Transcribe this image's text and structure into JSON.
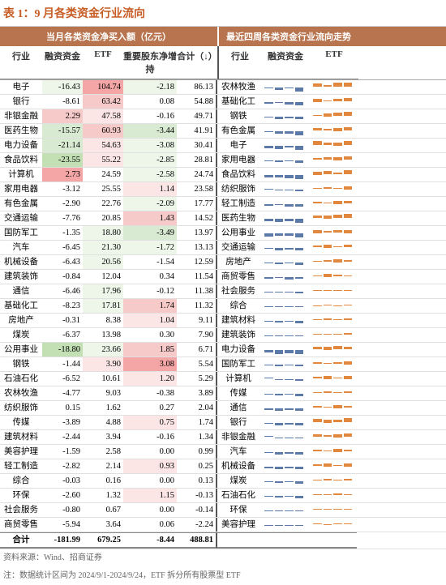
{
  "title": "表 1：9 月各类资金行业流向",
  "colors": {
    "header_bg": "#b8744e",
    "accent": "#c75c24",
    "grid": "#e0e0e0",
    "green1": "#c3e0b4",
    "green2": "#d9ead3",
    "green3": "#eef6ea",
    "red1": "#f4a6a6",
    "red2": "#f7caca",
    "red3": "#fbe5e5",
    "spark_blue": "#5b7aa8",
    "spark_orange": "#e2873e"
  },
  "sections": {
    "left": "当月各类资金净买入额（亿元）",
    "right": "最近四周各类资金行业流向走势"
  },
  "columns": {
    "industry": "行业",
    "margin": "融资资金",
    "etf": "ETF",
    "insider": "重要股东净增持",
    "total": "合计（↓）",
    "industry2": "行业",
    "margin2": "融资资金",
    "etf2": "ETF"
  },
  "rows": [
    {
      "ind": "电子",
      "mg": -16.43,
      "mgC": "green3",
      "etf": 104.74,
      "etfC": "red1",
      "ins": -2.18,
      "insC": "green3",
      "tot": 86.13,
      "ind2": "农林牧渔",
      "sp1": [
        -0.2,
        -0.6,
        -0.3,
        -0.8
      ],
      "sp2": [
        0.7,
        0.4,
        0.8,
        0.9
      ]
    },
    {
      "ind": "银行",
      "mg": -8.61,
      "etf": 63.42,
      "etfC": "red2",
      "ins": 0.08,
      "insC": "",
      "tot": 54.88,
      "ind2": "基础化工",
      "sp1": [
        -0.4,
        -0.3,
        -0.5,
        -0.7
      ],
      "sp2": [
        0.5,
        0.3,
        0.6,
        0.7
      ]
    },
    {
      "ind": "非银金融",
      "mg": 2.29,
      "mgC": "red2",
      "etf": 47.58,
      "etfC": "red3",
      "ins": -0.16,
      "tot": 49.71,
      "ind2": "钢铁",
      "sp1": [
        -0.2,
        -0.5,
        -0.4,
        -0.6
      ],
      "sp2": [
        0.3,
        0.5,
        0.7,
        0.8
      ]
    },
    {
      "ind": "医药生物",
      "mg": -15.57,
      "mgC": "green2",
      "etf": 60.93,
      "etfC": "red2",
      "ins": -3.44,
      "insC": "green2",
      "tot": 41.91,
      "ind2": "有色金属",
      "sp1": [
        -0.3,
        -0.6,
        -0.5,
        -0.8
      ],
      "sp2": [
        0.6,
        0.4,
        0.5,
        0.7
      ]
    },
    {
      "ind": "电力设备",
      "mg": -21.14,
      "mgC": "green2",
      "etf": 54.63,
      "etfC": "red3",
      "ins": -3.08,
      "insC": "green3",
      "tot": 30.41,
      "ind2": "电子",
      "sp1": [
        -0.5,
        -0.7,
        -0.4,
        -0.9
      ],
      "sp2": [
        0.8,
        0.6,
        0.5,
        0.9
      ]
    },
    {
      "ind": "食品饮料",
      "mg": -23.55,
      "mgC": "green1",
      "etf": 55.22,
      "etfC": "red3",
      "ins": -2.85,
      "insC": "green3",
      "tot": 28.81,
      "ind2": "家用电器",
      "sp1": [
        -0.2,
        -0.4,
        -0.3,
        -0.5
      ],
      "sp2": [
        0.4,
        0.6,
        0.5,
        0.7
      ]
    },
    {
      "ind": "计算机",
      "mg": 2.73,
      "mgC": "red1",
      "etf": 24.59,
      "etfC": "",
      "ins": -2.58,
      "insC": "green3",
      "tot": 24.74,
      "ind2": "食品饮料",
      "sp1": [
        -0.6,
        -0.5,
        -0.7,
        -0.8
      ],
      "sp2": [
        0.5,
        0.7,
        0.4,
        0.8
      ]
    },
    {
      "ind": "家用电器",
      "mg": -3.12,
      "etf": 25.55,
      "ins": 1.14,
      "insC": "red3",
      "tot": 23.58,
      "ind2": "纺织服饰",
      "sp1": [
        0.1,
        -0.3,
        -0.2,
        -0.4
      ],
      "sp2": [
        0.3,
        0.4,
        0.2,
        0.5
      ]
    },
    {
      "ind": "有色金属",
      "mg": -2.9,
      "etf": 22.76,
      "ins": -2.09,
      "insC": "green3",
      "tot": 17.77,
      "ind2": "轻工制造",
      "sp1": [
        -0.4,
        -0.3,
        -0.5,
        -0.6
      ],
      "sp2": [
        0.4,
        0.3,
        0.5,
        0.6
      ]
    },
    {
      "ind": "交通运输",
      "mg": -7.76,
      "etf": 20.85,
      "ins": 1.43,
      "insC": "red2",
      "tot": 14.52,
      "ind2": "医药生物",
      "sp1": [
        -0.5,
        -0.7,
        -0.6,
        -0.8
      ],
      "sp2": [
        0.6,
        0.5,
        0.7,
        0.8
      ]
    },
    {
      "ind": "国防军工",
      "mg": -1.35,
      "etf": 18.8,
      "etfC": "green3",
      "ins": -3.49,
      "insC": "green2",
      "tot": 13.97,
      "ind2": "公用事业",
      "sp1": [
        -0.7,
        -0.5,
        -0.6,
        -0.8
      ],
      "sp2": [
        0.5,
        0.4,
        0.6,
        0.5
      ]
    },
    {
      "ind": "汽车",
      "mg": -6.45,
      "etf": 21.3,
      "etfC": "green3",
      "ins": -1.72,
      "insC": "green3",
      "tot": 13.13,
      "ind2": "交通运输",
      "sp1": [
        -0.3,
        -0.5,
        -0.4,
        -0.6
      ],
      "sp2": [
        0.4,
        0.5,
        0.3,
        0.6
      ]
    },
    {
      "ind": "机械设备",
      "mg": -6.43,
      "etf": 20.56,
      "etfC": "green3",
      "ins": -1.54,
      "tot": 12.59,
      "ind2": "房地产",
      "sp1": [
        -0.2,
        -0.4,
        -0.3,
        -0.5
      ],
      "sp2": [
        0.3,
        0.4,
        0.5,
        0.4
      ]
    },
    {
      "ind": "建筑装饰",
      "mg": -0.84,
      "etf": 12.04,
      "ins": 0.34,
      "tot": 11.54,
      "ind2": "商贸零售",
      "sp1": [
        -0.4,
        -0.3,
        -0.5,
        -0.4
      ],
      "sp2": [
        0.3,
        0.5,
        0.4,
        0.3
      ]
    },
    {
      "ind": "通信",
      "mg": -6.46,
      "etf": 17.96,
      "etfC": "green3",
      "ins": -0.12,
      "tot": 11.38,
      "ind2": "社会服务",
      "sp1": [
        -0.2,
        -0.3,
        -0.2,
        -0.4
      ],
      "sp2": [
        0.2,
        0.3,
        0.2,
        0.3
      ]
    },
    {
      "ind": "基础化工",
      "mg": -8.23,
      "etf": 17.81,
      "etfC": "green3",
      "ins": 1.74,
      "insC": "red2",
      "tot": 11.32,
      "ind2": "综合",
      "sp1": [
        -0.1,
        -0.2,
        -0.1,
        -0.2
      ],
      "sp2": [
        0.1,
        0.2,
        0.1,
        0.2
      ]
    },
    {
      "ind": "房地产",
      "mg": -0.31,
      "etf": 8.38,
      "ins": 1.04,
      "insC": "red3",
      "tot": 9.11,
      "ind2": "建筑材料",
      "sp1": [
        -0.3,
        -0.4,
        -0.3,
        -0.5
      ],
      "sp2": [
        0.3,
        0.4,
        0.3,
        0.4
      ]
    },
    {
      "ind": "煤炭",
      "mg": -6.37,
      "etf": 13.98,
      "ins": 0.3,
      "tot": 7.9,
      "ind2": "建筑装饰",
      "sp1": [
        -0.2,
        -0.3,
        -0.2,
        -0.3
      ],
      "sp2": [
        0.3,
        0.2,
        0.3,
        0.4
      ]
    },
    {
      "ind": "公用事业",
      "mg": -18.8,
      "mgC": "green1",
      "etf": 23.66,
      "etfC": "green3",
      "ins": 1.85,
      "insC": "red2",
      "tot": 6.71,
      "ind2": "电力设备",
      "sp1": [
        -0.6,
        -0.8,
        -0.7,
        -0.9
      ],
      "sp2": [
        0.6,
        0.5,
        0.7,
        0.6
      ]
    },
    {
      "ind": "钢铁",
      "mg": -1.44,
      "etf": 3.9,
      "etfC": "red3",
      "ins": 3.08,
      "insC": "red1",
      "tot": 5.54,
      "ind2": "国防军工",
      "sp1": [
        -0.2,
        -0.4,
        -0.3,
        -0.4
      ],
      "sp2": [
        0.4,
        0.3,
        0.4,
        0.5
      ]
    },
    {
      "ind": "石油石化",
      "mg": -6.52,
      "etf": 10.61,
      "ins": 1.2,
      "insC": "red3",
      "tot": 5.29,
      "ind2": "计算机",
      "sp1": [
        0.2,
        -0.3,
        -0.2,
        -0.4
      ],
      "sp2": [
        0.4,
        0.5,
        0.3,
        0.5
      ]
    },
    {
      "ind": "农林牧渔",
      "mg": -4.77,
      "etf": 9.03,
      "ins": -0.38,
      "tot": 3.89,
      "ind2": "传媒",
      "sp1": [
        -0.3,
        -0.4,
        -0.3,
        -0.5
      ],
      "sp2": [
        0.3,
        0.4,
        0.2,
        0.4
      ]
    },
    {
      "ind": "纺织服饰",
      "mg": 0.15,
      "etf": 1.62,
      "ins": 0.27,
      "tot": 2.04,
      "ind2": "通信",
      "sp1": [
        -0.4,
        -0.5,
        -0.4,
        -0.6
      ],
      "sp2": [
        0.4,
        0.3,
        0.5,
        0.4
      ]
    },
    {
      "ind": "传媒",
      "mg": -3.89,
      "etf": 4.88,
      "ins": 0.75,
      "insC": "red3",
      "tot": 1.74,
      "ind2": "银行",
      "sp1": [
        -0.3,
        -0.5,
        -0.4,
        -0.6
      ],
      "sp2": [
        0.7,
        0.5,
        0.6,
        0.8
      ]
    },
    {
      "ind": "建筑材料",
      "mg": -2.44,
      "etf": 3.94,
      "ins": -0.16,
      "tot": 1.34,
      "ind2": "非银金融",
      "sp1": [
        0.3,
        -0.2,
        -0.1,
        -0.3
      ],
      "sp2": [
        0.6,
        0.4,
        0.5,
        0.7
      ]
    },
    {
      "ind": "美容护理",
      "mg": -1.59,
      "etf": 2.58,
      "ins": 0.0,
      "tot": 0.99,
      "ind2": "汽车",
      "sp1": [
        -0.3,
        -0.5,
        -0.4,
        -0.6
      ],
      "sp2": [
        0.4,
        0.3,
        0.5,
        0.4
      ]
    },
    {
      "ind": "轻工制造",
      "mg": -2.82,
      "etf": 2.14,
      "ins": 0.93,
      "insC": "red3",
      "tot": 0.25,
      "ind2": "机械设备",
      "sp1": [
        -0.4,
        -0.5,
        -0.4,
        -0.6
      ],
      "sp2": [
        0.4,
        0.5,
        0.3,
        0.5
      ]
    },
    {
      "ind": "综合",
      "mg": -0.03,
      "etf": 0.16,
      "ins": 0.0,
      "tot": 0.13,
      "ind2": "煤炭",
      "sp1": [
        -0.3,
        -0.4,
        -0.3,
        -0.5
      ],
      "sp2": [
        0.3,
        0.4,
        0.3,
        0.4
      ]
    },
    {
      "ind": "环保",
      "mg": -2.6,
      "etf": 1.32,
      "ins": 1.15,
      "insC": "red3",
      "tot": -0.13,
      "ind2": "石油石化",
      "sp1": [
        -0.3,
        -0.4,
        -0.3,
        -0.5
      ],
      "sp2": [
        0.3,
        0.2,
        0.4,
        0.3
      ]
    },
    {
      "ind": "社会服务",
      "mg": -0.8,
      "etf": 0.67,
      "ins": 0.0,
      "tot": -0.14,
      "ind2": "环保",
      "sp1": [
        -0.2,
        -0.3,
        -0.2,
        -0.3
      ],
      "sp2": [
        0.2,
        0.3,
        0.2,
        0.3
      ]
    },
    {
      "ind": "商贸零售",
      "mg": -5.94,
      "etf": 3.64,
      "ins": 0.06,
      "tot": -2.24,
      "ind2": "美容护理",
      "sp1": [
        -0.2,
        -0.3,
        -0.2,
        -0.3
      ],
      "sp2": [
        0.2,
        0.1,
        0.2,
        0.2
      ]
    }
  ],
  "total": {
    "label": "合计",
    "mg": -181.99,
    "etf": 679.25,
    "ins": -8.44,
    "tot": 488.81
  },
  "footer1": "资料来源：Wind、招商证券",
  "footer2": "注：数据统计区间为 2024/9/1-2024/9/24，ETF 拆分所有股票型 ETF"
}
